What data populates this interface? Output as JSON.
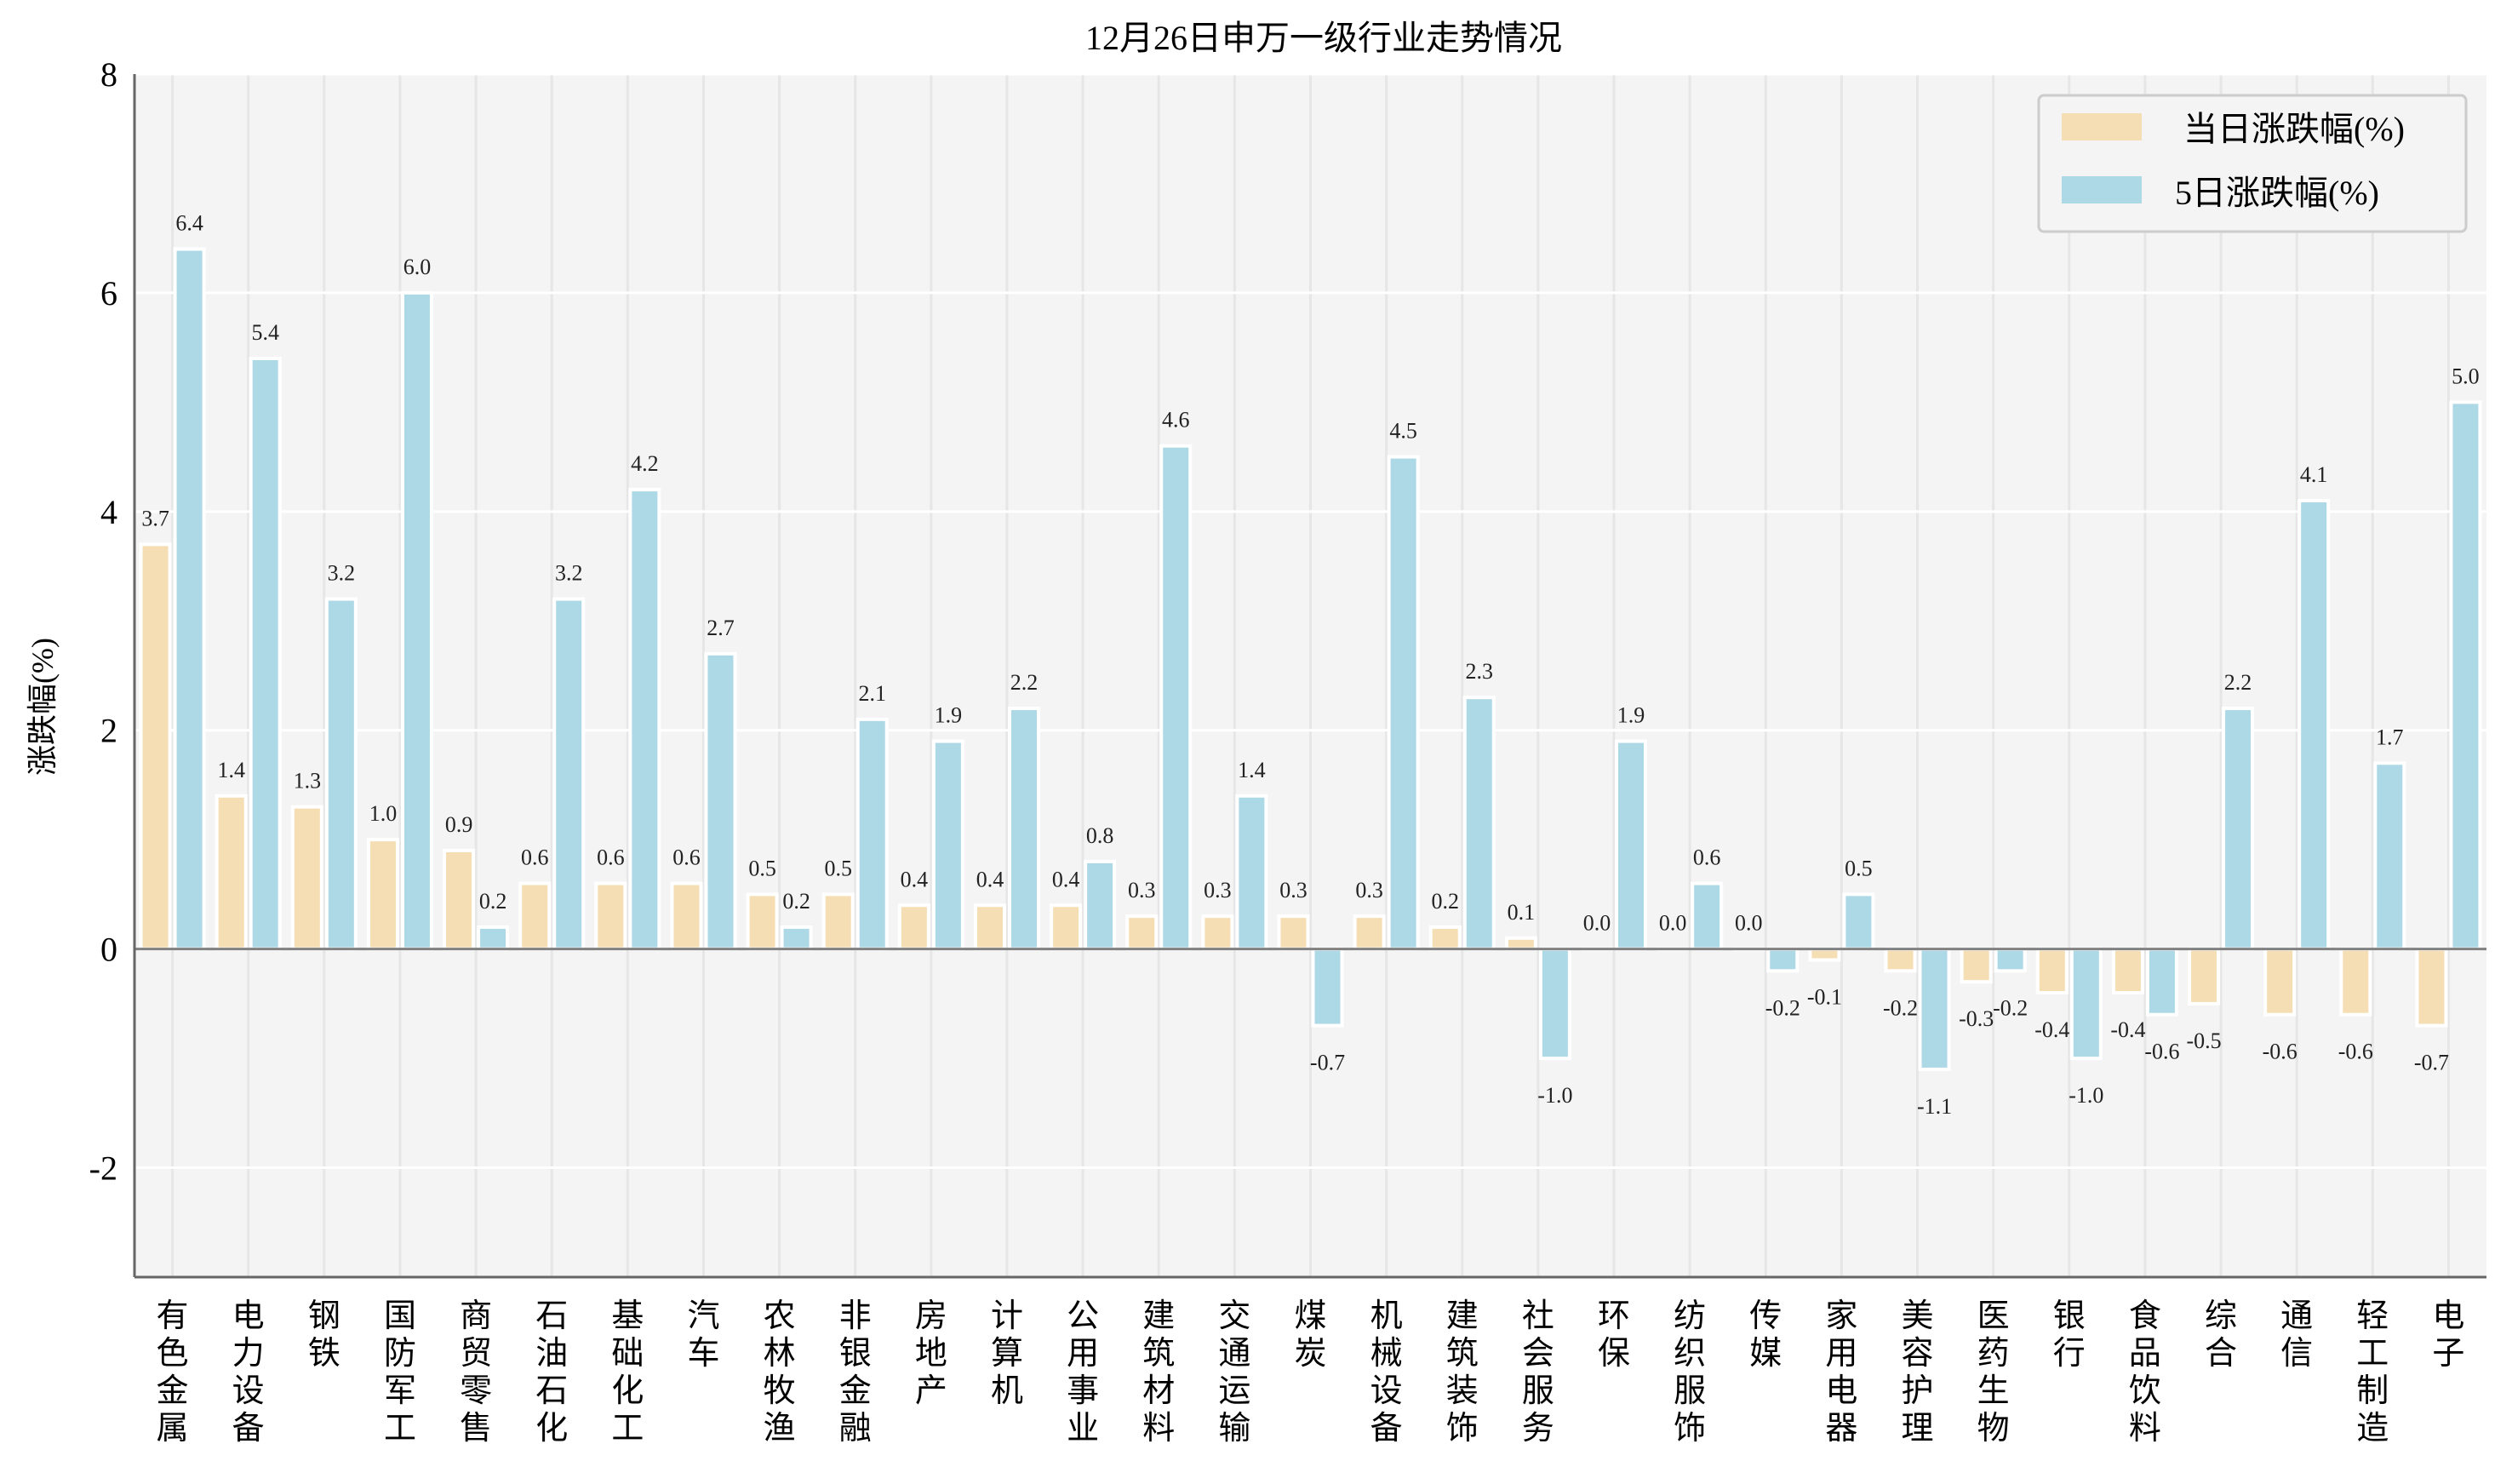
{
  "chart_data": {
    "type": "bar",
    "title": "12月26日申万一级行业走势情况",
    "xlabel": "",
    "ylabel": "涨跌幅(%)",
    "ylim": [
      -3,
      8
    ],
    "yticks": [
      -2,
      0,
      2,
      4,
      6,
      8
    ],
    "grid": true,
    "legend": "top-right",
    "categories": [
      "有色金属",
      "电力设备",
      "钢铁",
      "国防军工",
      "商贸零售",
      "石油石化",
      "基础化工",
      "汽车",
      "农林牧渔",
      "非银金融",
      "房地产",
      "计算机",
      "公用事业",
      "建筑材料",
      "交通运输",
      "煤炭",
      "机械设备",
      "建筑装饰",
      "社会服务",
      "环保",
      "纺织服饰",
      "传媒",
      "家用电器",
      "美容护理",
      "医药生物",
      "银行",
      "食品饮料",
      "综合",
      "通信",
      "轻工制造",
      "电子"
    ],
    "series": [
      {
        "name": "当日涨跌幅(%)",
        "color": "#f5deb3",
        "values": [
          3.7,
          1.4,
          1.3,
          1.0,
          0.9,
          0.6,
          0.6,
          0.6,
          0.5,
          0.5,
          0.4,
          0.4,
          0.4,
          0.3,
          0.3,
          0.3,
          0.3,
          0.2,
          0.1,
          0.0,
          0.0,
          0.0,
          -0.1,
          -0.2,
          -0.3,
          -0.4,
          -0.4,
          -0.5,
          -0.6,
          -0.6,
          -0.7
        ]
      },
      {
        "name": "5日涨跌幅(%)",
        "color": "#add8e6",
        "values": [
          6.4,
          5.4,
          3.2,
          6.0,
          0.2,
          3.2,
          4.2,
          2.7,
          0.2,
          2.1,
          1.9,
          2.2,
          0.8,
          4.6,
          1.4,
          -0.7,
          4.5,
          2.3,
          -1.0,
          1.9,
          0.6,
          -0.2,
          0.5,
          -1.1,
          -0.2,
          -1.0,
          -0.6,
          2.2,
          4.1,
          1.7,
          5.0
        ]
      }
    ]
  }
}
